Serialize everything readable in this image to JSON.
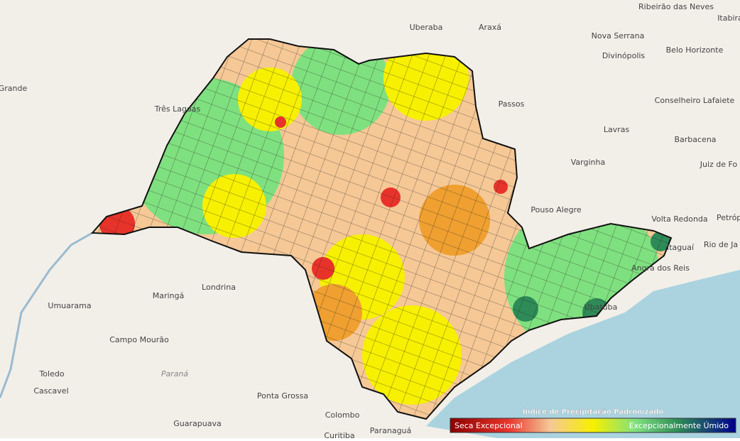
{
  "map": {
    "labels": [
      "Grande",
      "Três Lagoas",
      "Uberaba",
      "Araxá",
      "Ribeirão das Neves",
      "Itabira",
      "Nova Serrana",
      "Divinópolis",
      "Belo Horizonte",
      "Passos",
      "Conselheiro Lafaiete",
      "Lavras",
      "Barbacena",
      "Varginha",
      "Juiz de Fo",
      "Pouso Alegre",
      "Volta Redonda",
      "Petrópo",
      "Itaguaí",
      "Rio de Ja",
      "Angra dos Reis",
      "Maringá",
      "Londrina",
      "Umuarama",
      "Campo Mourão",
      "Paraná",
      "Toledo",
      "Cascavel",
      "Ponta Grossa",
      "Guarapuava",
      "Colombo",
      "Paranaguá",
      "Curitiba",
      "Ubatuba"
    ],
    "legend": {
      "title": "Índice de Precipitação Padronizado",
      "low_label": "Seca Excepcional",
      "high_label": "Excepcionalmente Úmido"
    }
  }
}
